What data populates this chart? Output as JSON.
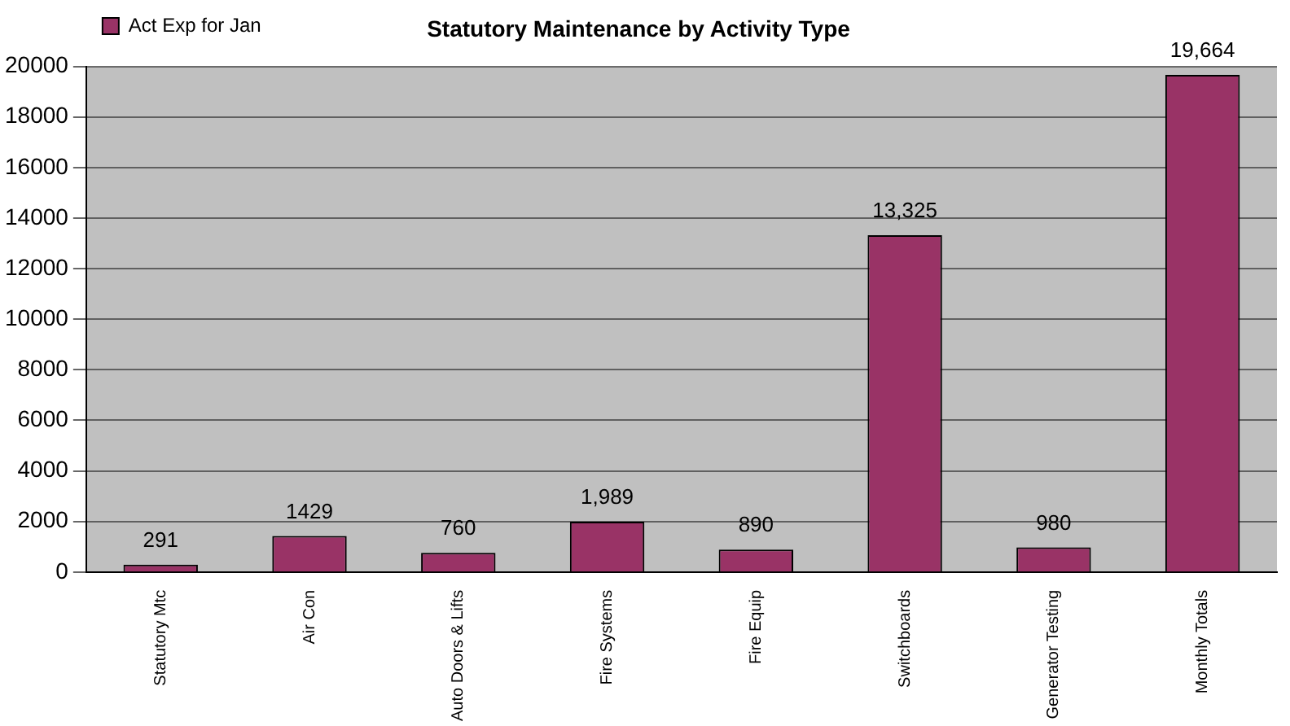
{
  "chart_data": {
    "type": "bar",
    "title": "Statutory Maintenance by Activity Type",
    "categories": [
      "Statutory Mtc",
      "Air Con",
      "Auto Doors & Lifts",
      "Fire Systems",
      "Fire Equip",
      "Switchboards",
      "Generator Testing",
      "Monthly Totals"
    ],
    "series": [
      {
        "name": "Act Exp for Jan",
        "color": "#993366",
        "values": [
          291,
          1429,
          760,
          1989,
          890,
          13325,
          980,
          19664
        ],
        "value_labels": [
          "291",
          "1429",
          "760",
          "1,989",
          "890",
          "13,325",
          "980",
          "19,664"
        ]
      }
    ],
    "ylim": [
      0,
      20000
    ],
    "yticks": [
      0,
      2000,
      4000,
      6000,
      8000,
      10000,
      12000,
      14000,
      16000,
      18000,
      20000
    ],
    "grid": "y",
    "legend": "top left"
  }
}
